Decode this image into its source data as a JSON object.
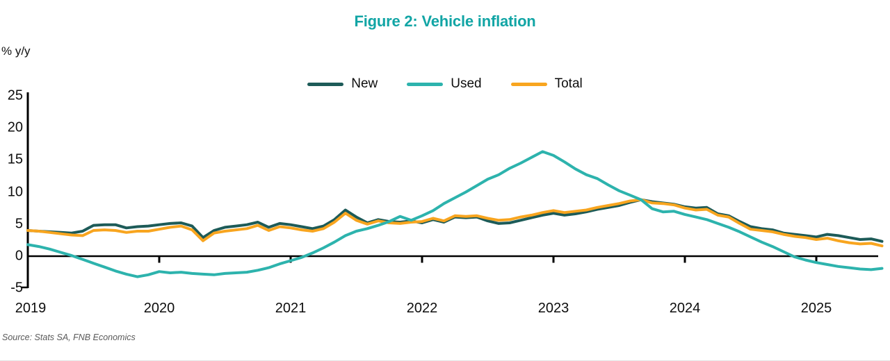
{
  "header": {
    "title": "Figure 2: Vehicle inflation"
  },
  "chart": {
    "y_axis_unit_label": "% y/y"
  },
  "footer": {
    "source": "Source: Stats SA, FNB Economics"
  },
  "colors": {
    "title": "#12a5a5",
    "new_line": "#1d5b58",
    "used_line": "#2db3ad",
    "total_line": "#f8a51f",
    "axis": "#000000",
    "source_text": "#595959"
  },
  "chart_data": {
    "type": "line",
    "title": "Figure 2: Vehicle inflation",
    "ylabel": "% y/y",
    "x_unit": "month",
    "x_start": "2019-01",
    "x_end": "2025-07",
    "x_tick_labels": [
      "2019",
      "2020",
      "2021",
      "2022",
      "2023",
      "2024",
      "2025"
    ],
    "y_ticks": [
      25,
      20,
      15,
      10,
      5,
      0,
      -5
    ],
    "ylim": [
      -5,
      25
    ],
    "grid": false,
    "legend_position": "top-center",
    "series": [
      {
        "name": "New",
        "color": "#1d5b58",
        "values": [
          4.0,
          3.9,
          3.8,
          3.7,
          3.6,
          3.9,
          4.8,
          4.9,
          4.9,
          4.4,
          4.6,
          4.7,
          4.9,
          5.1,
          5.2,
          4.7,
          2.9,
          4.0,
          4.5,
          4.7,
          4.9,
          5.3,
          4.5,
          5.1,
          4.9,
          4.6,
          4.3,
          4.7,
          5.7,
          7.2,
          6.1,
          5.2,
          5.7,
          5.4,
          5.3,
          5.5,
          5.2,
          5.7,
          5.3,
          6.1,
          6.0,
          6.1,
          5.5,
          5.1,
          5.2,
          5.6,
          6.0,
          6.4,
          6.7,
          6.4,
          6.6,
          6.9,
          7.3,
          7.6,
          7.9,
          8.4,
          8.8,
          8.5,
          8.3,
          8.1,
          7.7,
          7.5,
          7.6,
          6.6,
          6.3,
          5.4,
          4.6,
          4.3,
          4.1,
          3.6,
          3.4,
          3.2,
          3.0,
          3.4,
          3.2,
          2.9,
          2.6,
          2.7,
          2.3
        ]
      },
      {
        "name": "Used",
        "color": "#2db3ad",
        "values": [
          1.8,
          1.5,
          1.1,
          0.6,
          0.1,
          -0.5,
          -1.1,
          -1.7,
          -2.3,
          -2.8,
          -3.2,
          -2.9,
          -2.4,
          -2.6,
          -2.5,
          -2.7,
          -2.8,
          -2.9,
          -2.7,
          -2.6,
          -2.5,
          -2.2,
          -1.8,
          -1.2,
          -0.7,
          -0.2,
          0.5,
          1.3,
          2.2,
          3.2,
          3.9,
          4.3,
          4.8,
          5.4,
          6.2,
          5.6,
          6.3,
          7.1,
          8.2,
          9.1,
          10.0,
          11.0,
          12.0,
          12.7,
          13.7,
          14.5,
          15.4,
          16.3,
          15.7,
          14.7,
          13.6,
          12.7,
          12.1,
          11.1,
          10.2,
          9.5,
          8.8,
          7.4,
          6.9,
          7.0,
          6.5,
          6.1,
          5.7,
          5.1,
          4.5,
          3.8,
          3.0,
          2.2,
          1.5,
          0.7,
          -0.1,
          -0.6,
          -1.0,
          -1.3,
          -1.6,
          -1.8,
          -2.0,
          -2.1,
          -1.9
        ]
      },
      {
        "name": "Total",
        "color": "#f8a51f",
        "values": [
          4.0,
          3.9,
          3.7,
          3.5,
          3.3,
          3.2,
          4.0,
          4.1,
          4.0,
          3.7,
          3.9,
          3.9,
          4.2,
          4.5,
          4.7,
          4.1,
          2.4,
          3.6,
          3.9,
          4.1,
          4.3,
          4.8,
          4.0,
          4.6,
          4.4,
          4.1,
          3.9,
          4.3,
          5.3,
          6.7,
          5.6,
          5.0,
          5.5,
          5.2,
          5.1,
          5.3,
          5.4,
          5.9,
          5.5,
          6.3,
          6.2,
          6.3,
          5.9,
          5.6,
          5.7,
          6.1,
          6.4,
          6.8,
          7.1,
          6.8,
          7.0,
          7.2,
          7.6,
          7.9,
          8.2,
          8.6,
          8.8,
          8.3,
          8.2,
          8.0,
          7.5,
          7.2,
          7.3,
          6.4,
          6.1,
          5.1,
          4.2,
          4.0,
          3.8,
          3.4,
          3.1,
          2.9,
          2.6,
          2.8,
          2.4,
          2.1,
          1.9,
          2.0,
          1.6
        ]
      }
    ]
  }
}
